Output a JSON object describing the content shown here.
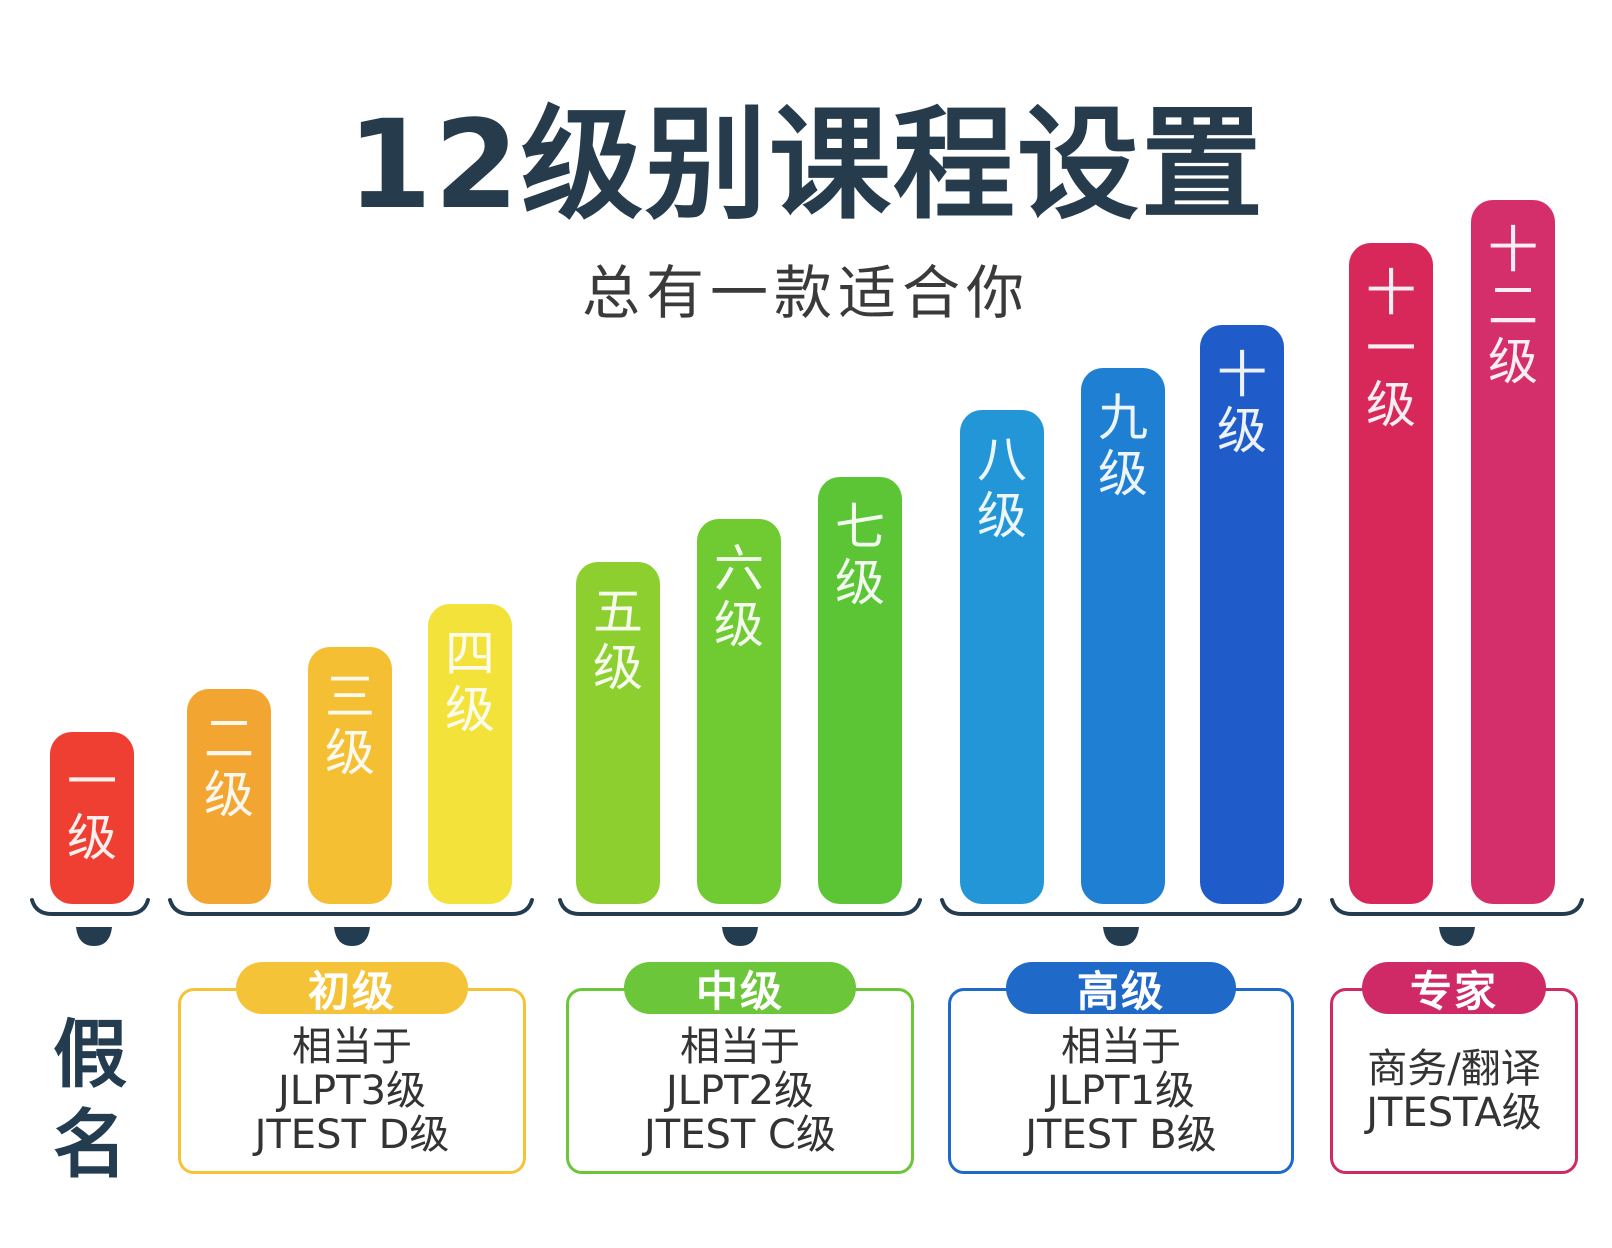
{
  "header": {
    "title": "12级别课程设置",
    "subtitle": "总有一款适合你"
  },
  "chart_data": {
    "type": "bar",
    "categories": [
      "一级",
      "二级",
      "三级",
      "四级",
      "五级",
      "六级",
      "七级",
      "八级",
      "九级",
      "十级",
      "十一级",
      "十二级"
    ],
    "values": [
      1,
      2,
      3,
      4,
      5,
      6,
      7,
      8,
      9,
      10,
      11,
      12
    ],
    "colors": [
      "#ef3e32",
      "#f2a531",
      "#f4bf33",
      "#f3e23a",
      "#8ccf2e",
      "#6fcb31",
      "#5cc535",
      "#2296d6",
      "#1f7fd2",
      "#1f5cc9",
      "#d8285a",
      "#d42f6b"
    ]
  },
  "kana_label": "假名",
  "groups": [
    {
      "name": "初级",
      "color": "#f5c337",
      "lines": [
        "相当于",
        "JLPT3级",
        "JTEST D级"
      ]
    },
    {
      "name": "中级",
      "color": "#6cc63a",
      "lines": [
        "相当于",
        "JLPT2级",
        "JTEST C级"
      ]
    },
    {
      "name": "高级",
      "color": "#1f69c9",
      "lines": [
        "相当于",
        "JLPT1级",
        "JTEST B级"
      ]
    },
    {
      "name": "专家",
      "color": "#cf2a66",
      "lines": [
        "商务/翻译",
        "JTESTA级"
      ]
    }
  ]
}
